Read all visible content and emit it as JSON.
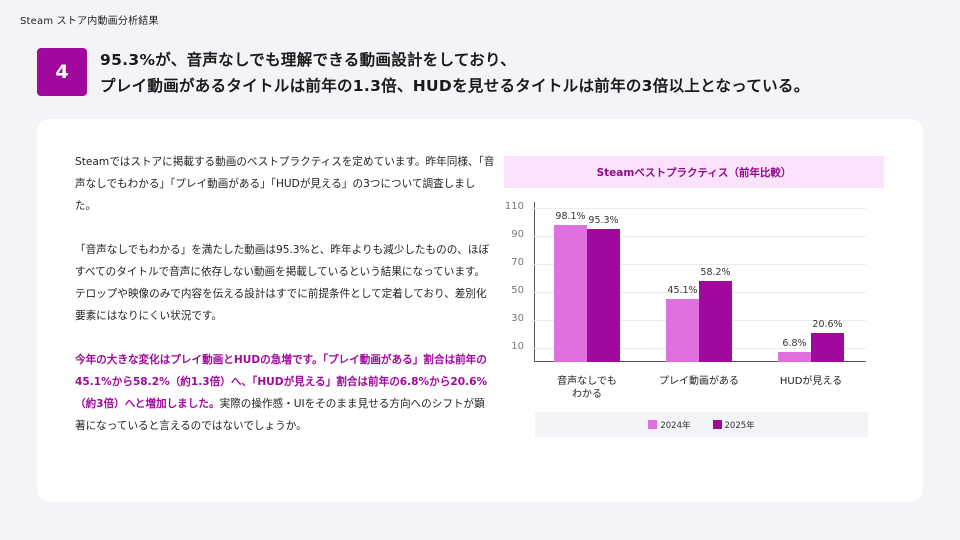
{
  "header": {
    "breadcrumb": "Steam ストア内動画分析結果",
    "section_number": "4",
    "headline_line1": "95.3%が、音声なしでも理解できる動画設計をしており、",
    "headline_line2": "プレイ動画があるタイトルは前年の1.3倍、HUDを見せるタイトルは前年の3倍以上となっている。"
  },
  "body": {
    "para1": "Steamではストアに掲載する動画のベストプラクティスを定めています。昨年同様、「音声なしでもわかる」「プレイ動画がある」「HUDが見える」の3つについて調査しました。",
    "para2": "「音声なしでもわかる」を満たした動画は95.3%と、昨年よりも減少したものの、ほぼすべてのタイトルで音声に依存しない動画を掲載しているという結果になっています。テロップや映像のみで内容を伝える設計はすでに前提条件として定着しており、差別化要素にはなりにくい状況です。",
    "para3_highlight": "今年の大きな変化はプレイ動画とHUDの急増です。「プレイ動画がある」割合は前年の45.1%から58.2%（約1.3倍）へ、「HUDが見える」割合は前年の6.8%から20.6%（約3倍）へと増加しました。",
    "para3_rest": "実際の操作感・UIをそのまま見せる方向へのシフトが顕著になっていると言えるのではないでしょうか。"
  },
  "colors": {
    "accent": "#a0089e",
    "series_2024": "#e070df",
    "series_2025": "#a0089e",
    "chart_title_bg": "#fbe4fb",
    "page_bg": "#f3f4f8"
  },
  "chart_data": {
    "type": "bar",
    "title": "Steamベストプラクティス（前年比較）",
    "categories": [
      "音声なしでもわかる",
      "プレイ動画がある",
      "HUDが見える"
    ],
    "category_labels_display": [
      [
        "音声なしでも",
        "わかる"
      ],
      [
        "プレイ動画がある"
      ],
      [
        "HUDが見える"
      ]
    ],
    "series": [
      {
        "name": "2024年",
        "values": [
          98.1,
          45.1,
          6.8
        ],
        "labels": [
          "98.1%",
          "45.1%",
          "6.8%"
        ]
      },
      {
        "name": "2025年",
        "values": [
          95.3,
          58.2,
          20.6
        ],
        "labels": [
          "95.3%",
          "58.2%",
          "20.6%"
        ]
      }
    ],
    "yticks": [
      10,
      30,
      50,
      70,
      90,
      110
    ],
    "ylim": [
      0,
      110
    ],
    "xlabel": "",
    "ylabel": "",
    "grid": true,
    "legend_position": "bottom"
  }
}
